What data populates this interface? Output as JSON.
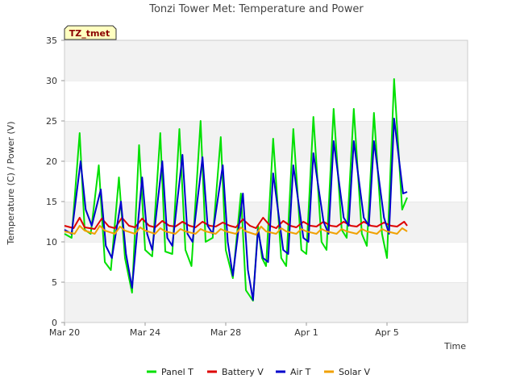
{
  "chart_data": {
    "type": "line",
    "title": "Tonzi Tower Met: Temperature and Power",
    "xlabel": "Time",
    "ylabel": "Temperature (C) / Power (V)",
    "badge": "TZ_tmet",
    "xlim": [
      0,
      20
    ],
    "ylim": [
      0,
      35
    ],
    "y_ticks": [
      0,
      5,
      10,
      15,
      20,
      25,
      30,
      35
    ],
    "x_ticks": [
      {
        "day": 0,
        "label": "Mar 20"
      },
      {
        "day": 4,
        "label": "Mar 24"
      },
      {
        "day": 8,
        "label": "Mar 28"
      },
      {
        "day": 12,
        "label": "Apr 1"
      },
      {
        "day": 16,
        "label": "Apr 5"
      }
    ],
    "grid": "horizontal bands",
    "legend_position": "bottom",
    "series": [
      {
        "name": "Panel T",
        "color": "#00e000",
        "days": [
          0.0,
          0.35,
          0.75,
          1.0,
          1.3,
          1.7,
          2.0,
          2.3,
          2.7,
          3.0,
          3.35,
          3.7,
          4.0,
          4.35,
          4.75,
          5.0,
          5.35,
          5.7,
          6.0,
          6.3,
          6.75,
          7.0,
          7.35,
          7.75,
          8.0,
          8.35,
          8.75,
          9.0,
          9.35,
          9.6,
          9.8,
          10.0,
          10.35,
          10.75,
          11.0,
          11.35,
          11.75,
          12.0,
          12.35,
          12.75,
          13.0,
          13.35,
          13.75,
          14.0,
          14.35,
          14.75,
          15.0,
          15.35,
          15.75,
          16.0,
          16.35,
          16.75,
          17.0
        ],
        "values": [
          11.0,
          10.5,
          23.5,
          11.5,
          11.0,
          19.5,
          7.5,
          6.5,
          18.0,
          8.0,
          3.7,
          22.0,
          9.0,
          8.2,
          23.5,
          8.8,
          8.5,
          24.0,
          9.0,
          7.0,
          25.0,
          10.0,
          10.5,
          23.0,
          9.0,
          5.5,
          16.0,
          4.0,
          2.7,
          12.0,
          8.0,
          7.0,
          22.8,
          8.0,
          7.0,
          24.0,
          9.0,
          8.5,
          25.5,
          10.0,
          9.0,
          26.5,
          11.5,
          10.5,
          26.5,
          11.0,
          9.5,
          26.0,
          11.0,
          8.0,
          30.2,
          14.0,
          15.5
        ]
      },
      {
        "name": "Battery V",
        "color": "#dd0000",
        "days": [
          0.0,
          0.45,
          0.75,
          1.0,
          1.5,
          1.85,
          2.2,
          2.5,
          2.85,
          3.2,
          3.5,
          3.85,
          4.2,
          4.5,
          4.85,
          5.2,
          5.5,
          5.85,
          6.2,
          6.5,
          6.85,
          7.2,
          7.5,
          7.85,
          8.2,
          8.5,
          8.85,
          9.2,
          9.5,
          9.85,
          10.2,
          10.5,
          10.85,
          11.2,
          11.5,
          11.85,
          12.2,
          12.5,
          12.85,
          13.2,
          13.5,
          13.85,
          14.2,
          14.5,
          14.85,
          15.2,
          15.5,
          15.85,
          16.2,
          16.5,
          16.85,
          17.0
        ],
        "values": [
          12.0,
          11.7,
          13.0,
          11.8,
          11.6,
          12.9,
          11.9,
          11.7,
          13.0,
          12.0,
          11.8,
          12.9,
          12.0,
          11.8,
          12.6,
          12.0,
          11.9,
          12.5,
          12.0,
          11.8,
          12.5,
          12.0,
          11.9,
          12.4,
          12.0,
          11.8,
          12.8,
          12.0,
          11.7,
          13.0,
          12.0,
          11.7,
          12.6,
          12.0,
          11.8,
          12.5,
          12.0,
          11.9,
          12.5,
          12.0,
          11.9,
          12.5,
          12.0,
          11.9,
          12.5,
          12.0,
          11.9,
          12.4,
          12.0,
          11.9,
          12.5,
          12.0
        ]
      },
      {
        "name": "Air T",
        "color": "#0000cc",
        "days": [
          0.0,
          0.35,
          0.8,
          1.05,
          1.35,
          1.8,
          2.05,
          2.35,
          2.8,
          3.05,
          3.35,
          3.85,
          4.1,
          4.35,
          4.85,
          5.1,
          5.35,
          5.85,
          6.1,
          6.35,
          6.85,
          7.1,
          7.35,
          7.85,
          8.1,
          8.35,
          8.85,
          9.1,
          9.35,
          9.6,
          9.85,
          10.1,
          10.35,
          10.85,
          11.1,
          11.35,
          11.85,
          12.1,
          12.35,
          12.85,
          13.1,
          13.35,
          13.85,
          14.1,
          14.35,
          14.85,
          15.1,
          15.35,
          15.85,
          16.1,
          16.35,
          16.8,
          17.0
        ],
        "values": [
          11.5,
          11.0,
          20.0,
          14.0,
          12.0,
          16.5,
          9.5,
          8.0,
          15.0,
          8.5,
          4.3,
          18.0,
          11.0,
          9.0,
          20.0,
          10.5,
          9.5,
          20.8,
          11.0,
          10.0,
          20.5,
          12.0,
          11.0,
          19.5,
          10.0,
          5.8,
          16.0,
          6.5,
          2.8,
          11.5,
          8.0,
          7.5,
          18.5,
          9.0,
          8.5,
          19.5,
          10.5,
          10.0,
          21.0,
          12.5,
          11.0,
          22.5,
          13.0,
          12.0,
          22.5,
          13.0,
          12.0,
          22.5,
          13.0,
          11.0,
          25.3,
          16.0,
          16.2
        ]
      },
      {
        "name": "Solar V",
        "color": "#f0a000",
        "days": [
          0.0,
          0.5,
          0.75,
          1.0,
          1.5,
          1.75,
          2.0,
          2.5,
          2.75,
          3.0,
          3.5,
          3.75,
          4.0,
          4.5,
          4.75,
          5.0,
          5.5,
          5.75,
          6.0,
          6.5,
          6.75,
          7.0,
          7.5,
          7.75,
          8.0,
          8.5,
          8.75,
          9.0,
          9.5,
          9.75,
          10.0,
          10.5,
          10.75,
          11.0,
          11.5,
          11.75,
          12.0,
          12.5,
          12.75,
          13.0,
          13.5,
          13.75,
          14.0,
          14.5,
          14.75,
          15.0,
          15.5,
          15.75,
          16.0,
          16.5,
          16.75,
          17.0
        ],
        "values": [
          11.3,
          11.0,
          12.0,
          11.4,
          11.0,
          12.0,
          11.4,
          11.0,
          11.9,
          11.4,
          11.0,
          11.8,
          11.4,
          11.0,
          11.7,
          11.3,
          11.0,
          11.6,
          11.3,
          11.0,
          11.6,
          11.3,
          11.0,
          11.6,
          11.3,
          11.0,
          11.8,
          11.3,
          10.9,
          11.9,
          11.3,
          11.0,
          11.7,
          11.3,
          11.0,
          11.6,
          11.3,
          11.0,
          11.6,
          11.3,
          11.0,
          11.6,
          11.3,
          11.0,
          11.6,
          11.3,
          11.0,
          11.6,
          11.3,
          11.0,
          11.7,
          11.3
        ]
      }
    ]
  }
}
